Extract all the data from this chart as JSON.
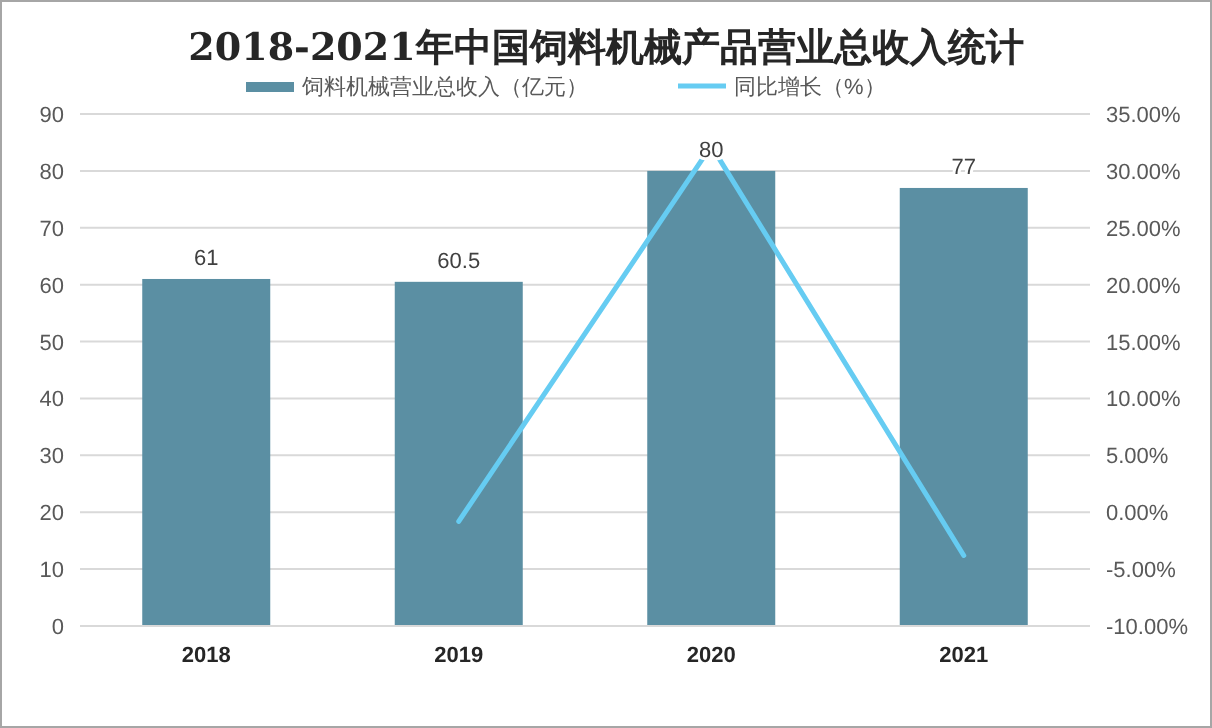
{
  "chart_data": {
    "type": "bar",
    "title": "2018-2021年中国饲料机械产品营业总收入统计",
    "categories": [
      "2018",
      "2019",
      "2020",
      "2021"
    ],
    "series": [
      {
        "name": "饲料机械营业总收入（亿元）",
        "color": "#5b8fa3",
        "values": [
          61,
          60.5,
          80,
          77
        ],
        "value_labels": [
          "61",
          "60.5",
          "80",
          "77"
        ]
      },
      {
        "name": "同比增长（%）",
        "type": "line",
        "axis": "y2",
        "color": "#66ccf2",
        "values": [
          null,
          -0.8,
          32.2,
          -3.8
        ]
      }
    ],
    "ylim": [
      0,
      90
    ],
    "yticks": [
      0,
      10,
      20,
      30,
      40,
      50,
      60,
      70,
      80,
      90
    ],
    "y2lim": [
      -10,
      35
    ],
    "y2ticks": [
      {
        "value": -10,
        "label": "-10.00%"
      },
      {
        "value": -5,
        "label": "-5.00%"
      },
      {
        "value": 0,
        "label": "0.00%"
      },
      {
        "value": 5,
        "label": "5.00%"
      },
      {
        "value": 10,
        "label": "10.00%"
      },
      {
        "value": 15,
        "label": "15.00%"
      },
      {
        "value": 20,
        "label": "20.00%"
      },
      {
        "value": 25,
        "label": "25.00%"
      },
      {
        "value": 30,
        "label": "30.00%"
      },
      {
        "value": 35,
        "label": "35.00%"
      }
    ],
    "grid": "y",
    "legend": "top",
    "marker": "none"
  }
}
